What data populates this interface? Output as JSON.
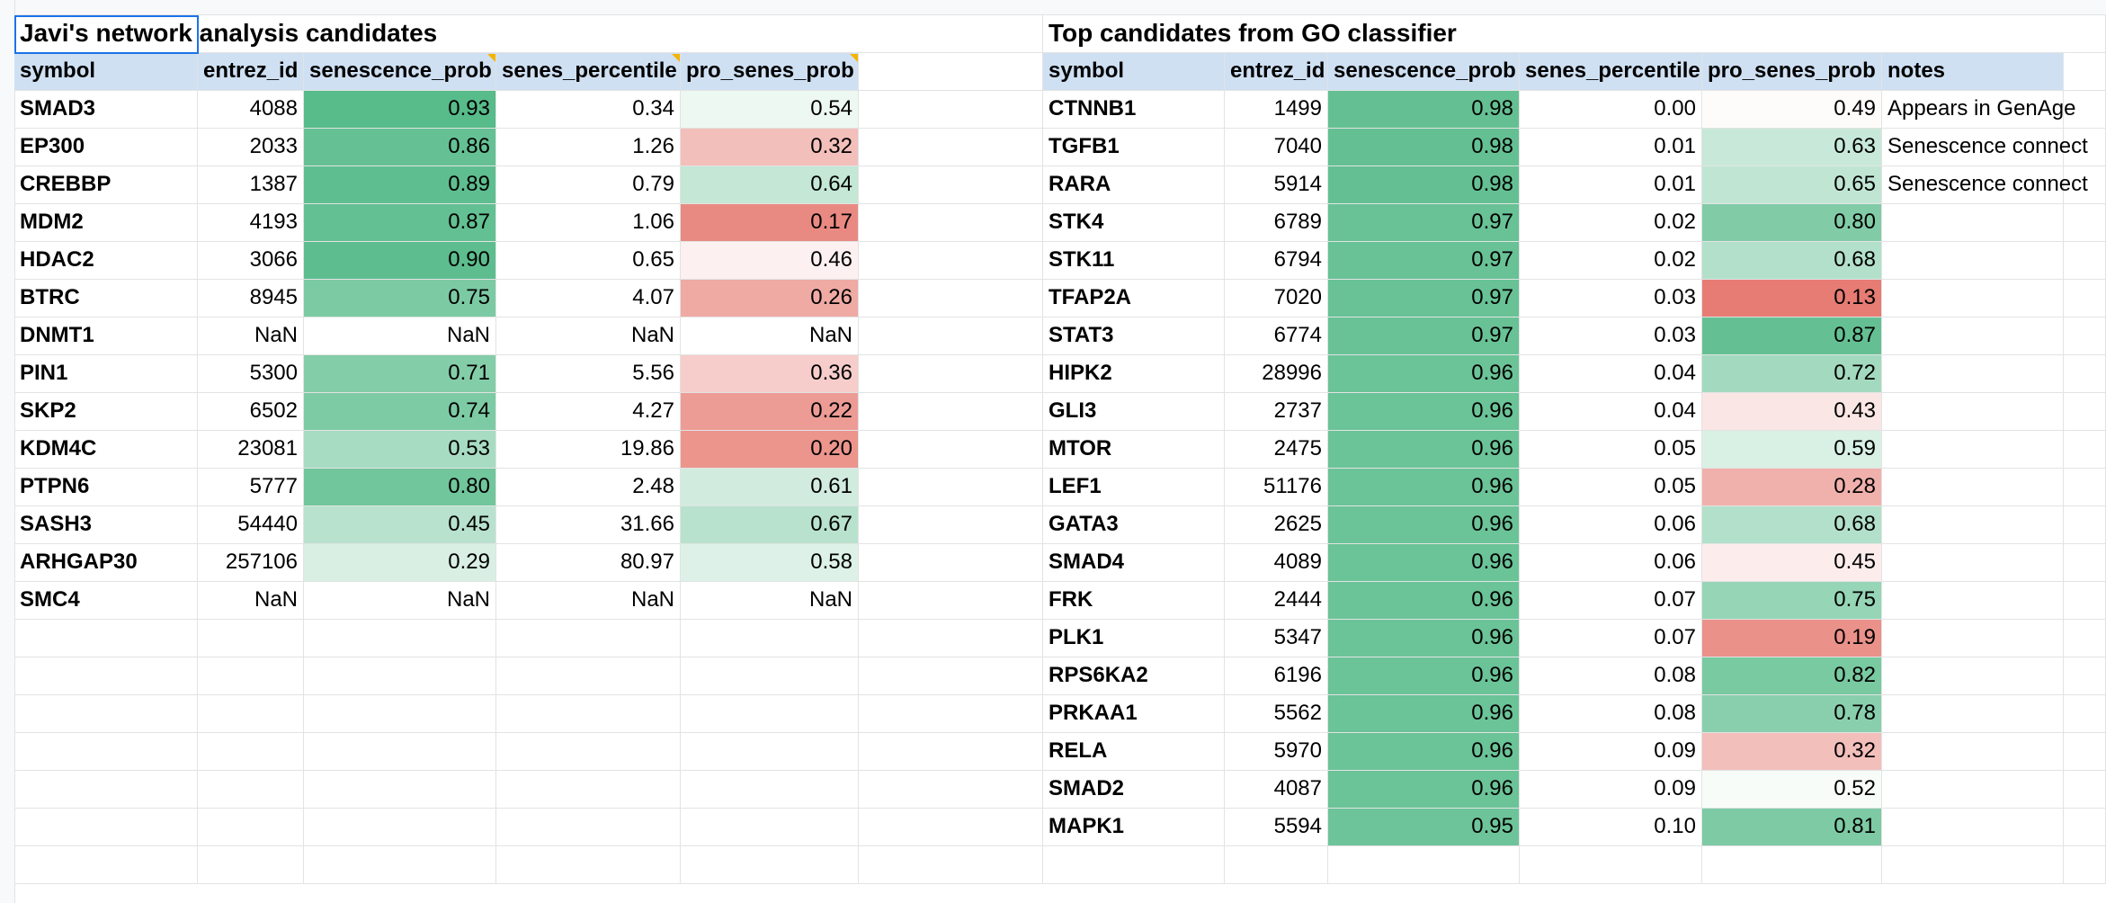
{
  "left_table": {
    "title": "Javi's network analysis candidates",
    "headers": [
      "symbol",
      "entrez_id",
      "senescence_prob",
      "senes_percentile",
      "pro_senes_prob"
    ],
    "rows": [
      [
        "SMAD3",
        "4088",
        "0.93",
        "0.34",
        "0.54"
      ],
      [
        "EP300",
        "2033",
        "0.86",
        "1.26",
        "0.32"
      ],
      [
        "CREBBP",
        "1387",
        "0.89",
        "0.79",
        "0.64"
      ],
      [
        "MDM2",
        "4193",
        "0.87",
        "1.06",
        "0.17"
      ],
      [
        "HDAC2",
        "3066",
        "0.90",
        "0.65",
        "0.46"
      ],
      [
        "BTRC",
        "8945",
        "0.75",
        "4.07",
        "0.26"
      ],
      [
        "DNMT1",
        "NaN",
        "NaN",
        "NaN",
        "NaN"
      ],
      [
        "PIN1",
        "5300",
        "0.71",
        "5.56",
        "0.36"
      ],
      [
        "SKP2",
        "6502",
        "0.74",
        "4.27",
        "0.22"
      ],
      [
        "KDM4C",
        "23081",
        "0.53",
        "19.86",
        "0.20"
      ],
      [
        "PTPN6",
        "5777",
        "0.80",
        "2.48",
        "0.61"
      ],
      [
        "SASH3",
        "54440",
        "0.45",
        "31.66",
        "0.67"
      ],
      [
        "ARHGAP30",
        "257106",
        "0.29",
        "80.97",
        "0.58"
      ],
      [
        "SMC4",
        "NaN",
        "NaN",
        "NaN",
        "NaN"
      ]
    ]
  },
  "right_table": {
    "title": "Top candidates from GO classifier",
    "headers": [
      "symbol",
      "entrez_id",
      "senescence_prob",
      "senes_percentile",
      "pro_senes_prob",
      "notes"
    ],
    "rows": [
      [
        "CTNNB1",
        "1499",
        "0.98",
        "0.00",
        "0.49",
        "Appears in GenAge"
      ],
      [
        "TGFB1",
        "7040",
        "0.98",
        "0.01",
        "0.63",
        "Senescence connect"
      ],
      [
        "RARA",
        "5914",
        "0.98",
        "0.01",
        "0.65",
        "Senescence connect"
      ],
      [
        "STK4",
        "6789",
        "0.97",
        "0.02",
        "0.80",
        ""
      ],
      [
        "STK11",
        "6794",
        "0.97",
        "0.02",
        "0.68",
        ""
      ],
      [
        "TFAP2A",
        "7020",
        "0.97",
        "0.03",
        "0.13",
        ""
      ],
      [
        "STAT3",
        "6774",
        "0.97",
        "0.03",
        "0.87",
        ""
      ],
      [
        "HIPK2",
        "28996",
        "0.96",
        "0.04",
        "0.72",
        ""
      ],
      [
        "GLI3",
        "2737",
        "0.96",
        "0.04",
        "0.43",
        ""
      ],
      [
        "MTOR",
        "2475",
        "0.96",
        "0.05",
        "0.59",
        ""
      ],
      [
        "LEF1",
        "51176",
        "0.96",
        "0.05",
        "0.28",
        ""
      ],
      [
        "GATA3",
        "2625",
        "0.96",
        "0.06",
        "0.68",
        ""
      ],
      [
        "SMAD4",
        "4089",
        "0.96",
        "0.06",
        "0.45",
        ""
      ],
      [
        "FRK",
        "2444",
        "0.96",
        "0.07",
        "0.75",
        ""
      ],
      [
        "PLK1",
        "5347",
        "0.96",
        "0.07",
        "0.19",
        ""
      ],
      [
        "RPS6KA2",
        "6196",
        "0.96",
        "0.08",
        "0.82",
        ""
      ],
      [
        "PRKAA1",
        "5562",
        "0.96",
        "0.08",
        "0.78",
        ""
      ],
      [
        "RELA",
        "5970",
        "0.96",
        "0.09",
        "0.32",
        ""
      ],
      [
        "SMAD2",
        "4087",
        "0.96",
        "0.09",
        "0.52",
        ""
      ],
      [
        "MAPK1",
        "5594",
        "0.95",
        "0.10",
        "0.81",
        ""
      ]
    ]
  },
  "colors": {
    "header_fill": "#cfe0f3",
    "selection_border": "#1a73e8",
    "comment_marker": "#f4b400",
    "scale_green": "#57bb8a",
    "scale_red": "#e67c73",
    "scale_white": "#ffffff"
  }
}
